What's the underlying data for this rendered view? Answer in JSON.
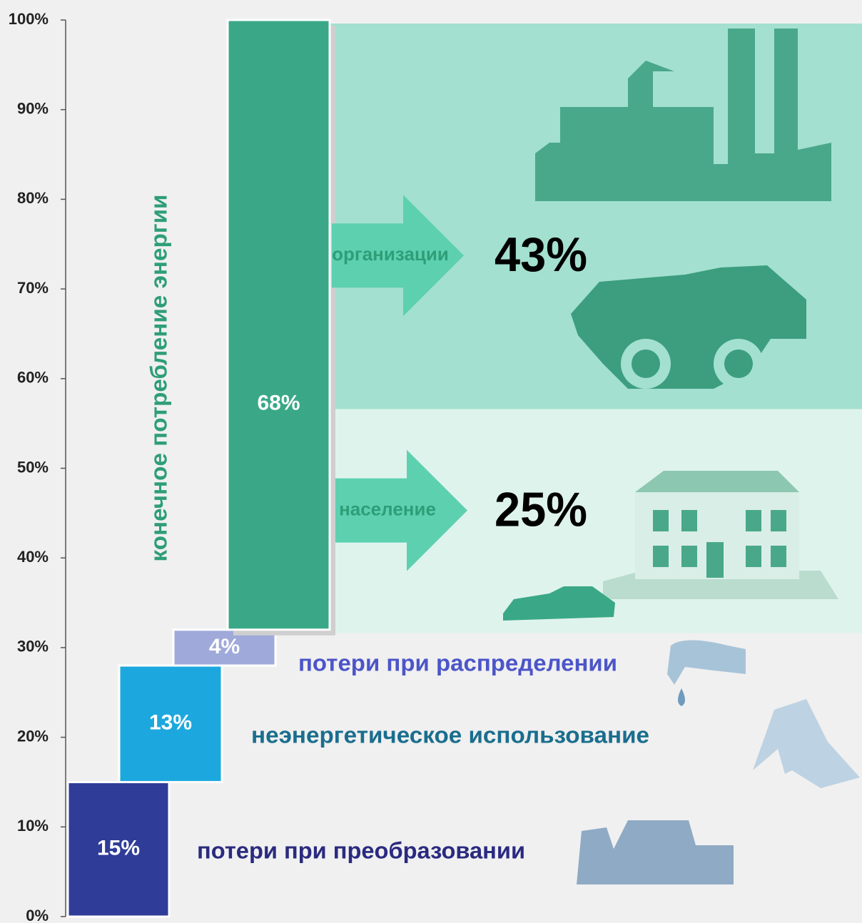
{
  "chart_data": {
    "type": "waterfall",
    "categories": [
      "потери при преобразовании",
      "неэнергетическое использование",
      "потери при распределении",
      "конечное потребление энергии"
    ],
    "values": [
      15,
      13,
      4,
      68
    ],
    "value_labels": [
      "15%",
      "13%",
      "4%",
      "68%"
    ],
    "colors": [
      "#2f3d98",
      "#1ca8de",
      "#9fa9da",
      "#3aa886"
    ],
    "ylim": [
      0,
      100
    ],
    "yticks": [
      {
        "value": 0,
        "label": "0%"
      },
      {
        "value": 10,
        "label": "10%"
      },
      {
        "value": 20,
        "label": "20%"
      },
      {
        "value": 30,
        "label": "30%"
      },
      {
        "value": 40,
        "label": "40%"
      },
      {
        "value": 50,
        "label": "50%"
      },
      {
        "value": 60,
        "label": "60%"
      },
      {
        "value": 70,
        "label": "70%"
      },
      {
        "value": 80,
        "label": "80%"
      },
      {
        "value": 90,
        "label": "90%"
      },
      {
        "value": 100,
        "label": "100%"
      }
    ],
    "breakdown": [
      {
        "name": "организации",
        "value": 43,
        "value_label": "43%",
        "color": "#a3e0cf"
      },
      {
        "name": "население",
        "value": 25,
        "value_label": "25%",
        "color": "#dff3ed"
      }
    ]
  }
}
